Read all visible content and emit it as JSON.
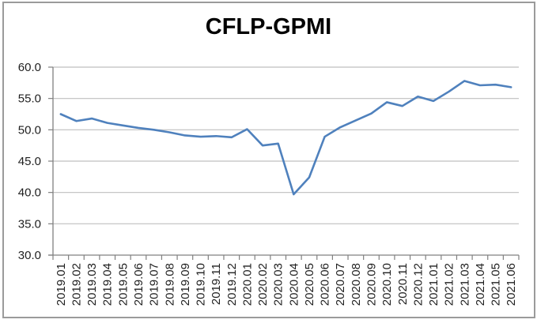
{
  "window": {
    "background_color": "#ffffff",
    "frame_border_color": "#9b9b9b"
  },
  "chart_data": {
    "type": "line",
    "title": "CFLP-GPMI",
    "categories": [
      "2019.01",
      "2019.02",
      "2019.03",
      "2019.04",
      "2019.05",
      "2019.06",
      "2019.07",
      "2019.08",
      "2019.09",
      "2019.10",
      "2019.11",
      "2019.12",
      "2020.01",
      "2020.02",
      "2020.03",
      "2020.04",
      "2020.05",
      "2020.06",
      "2020.07",
      "2020.08",
      "2020.09",
      "2020.10",
      "2020.11",
      "2020.12",
      "2021.01",
      "2021.02",
      "2021.03",
      "2021.04",
      "2021.05",
      "2021.06"
    ],
    "values": [
      52.5,
      51.4,
      51.8,
      51.1,
      50.7,
      50.3,
      50.0,
      49.6,
      49.1,
      48.9,
      49.0,
      48.8,
      50.1,
      47.5,
      47.8,
      39.7,
      42.4,
      48.9,
      50.4,
      51.5,
      52.6,
      54.4,
      53.8,
      55.3,
      54.6,
      56.1,
      57.8,
      57.1,
      57.2,
      56.8
    ],
    "xlabel": "",
    "ylabel": "",
    "ylim": [
      30,
      60
    ],
    "ytick_step": 5,
    "ytick_labels": [
      "60.0",
      "55.0",
      "50.0",
      "45.0",
      "40.0",
      "35.0",
      "30.0"
    ],
    "x_tick_rotation": 90,
    "grid": true,
    "legend": "none",
    "line_color": "#4F81BD",
    "gridline_color": "#BFBFBF",
    "axis_color": "#808080",
    "tick_label_color": "#1f1f1f",
    "title_color": "#000000"
  }
}
